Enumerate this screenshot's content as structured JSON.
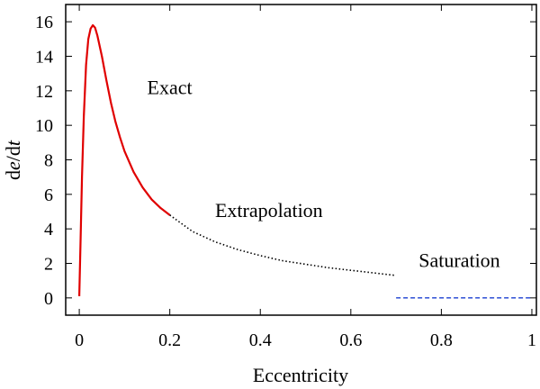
{
  "chart_data": {
    "type": "line",
    "xlabel": "Eccentricity",
    "ylabel_parts": [
      "d",
      "e",
      "/d",
      "t"
    ],
    "xlim": [
      -0.03,
      1.01
    ],
    "ylim": [
      -1,
      17
    ],
    "x_ticks": [
      0,
      0.2,
      0.4,
      0.6,
      0.8,
      1
    ],
    "x_tick_labels": [
      "0",
      "0.2",
      "0.4",
      "0.6",
      "0.8",
      "1"
    ],
    "y_ticks": [
      0,
      2,
      4,
      6,
      8,
      10,
      12,
      14,
      16
    ],
    "y_tick_labels": [
      "0",
      "2",
      "4",
      "6",
      "8",
      "10",
      "12",
      "14",
      "16"
    ],
    "grid": false,
    "series": [
      {
        "name": "Exact",
        "style": "solid",
        "color": "#e00000",
        "points": [
          [
            0.0,
            0.1
          ],
          [
            0.003,
            3.5
          ],
          [
            0.006,
            7.0
          ],
          [
            0.01,
            10.5
          ],
          [
            0.015,
            13.5
          ],
          [
            0.02,
            15.0
          ],
          [
            0.025,
            15.6
          ],
          [
            0.03,
            15.8
          ],
          [
            0.035,
            15.65
          ],
          [
            0.04,
            15.2
          ],
          [
            0.05,
            14.0
          ],
          [
            0.06,
            12.6
          ],
          [
            0.07,
            11.3
          ],
          [
            0.08,
            10.2
          ],
          [
            0.09,
            9.3
          ],
          [
            0.1,
            8.5
          ],
          [
            0.12,
            7.3
          ],
          [
            0.14,
            6.4
          ],
          [
            0.16,
            5.7
          ],
          [
            0.18,
            5.2
          ],
          [
            0.2,
            4.8
          ]
        ]
      },
      {
        "name": "Extrapolation",
        "style": "dotted",
        "color": "#000000",
        "points": [
          [
            0.2,
            4.8
          ],
          [
            0.25,
            3.85
          ],
          [
            0.3,
            3.25
          ],
          [
            0.35,
            2.8
          ],
          [
            0.4,
            2.45
          ],
          [
            0.45,
            2.15
          ],
          [
            0.5,
            1.95
          ],
          [
            0.55,
            1.75
          ],
          [
            0.6,
            1.6
          ],
          [
            0.65,
            1.45
          ],
          [
            0.7,
            1.3
          ]
        ]
      },
      {
        "name": "Saturation",
        "style": "dashed",
        "color": "#1a3fd0",
        "points": [
          [
            0.7,
            0.0
          ],
          [
            1.0,
            0.0
          ]
        ]
      }
    ],
    "annotations": [
      {
        "text": "Exact",
        "x": 0.15,
        "y": 11.8
      },
      {
        "text": "Extrapolation",
        "x": 0.3,
        "y": 4.7
      },
      {
        "text": "Saturation",
        "x": 0.75,
        "y": 1.8
      }
    ]
  }
}
